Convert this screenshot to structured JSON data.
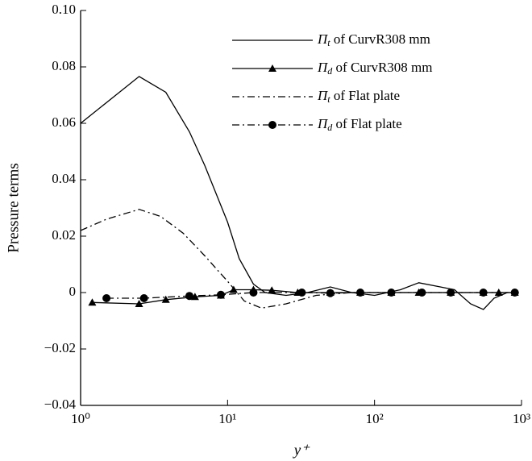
{
  "chart_data": {
    "type": "line",
    "xlabel": "y⁺",
    "ylabel": "Pressure terms",
    "xscale": "log",
    "xlim": [
      1,
      1000
    ],
    "ylim": [
      -0.04,
      0.1
    ],
    "xticks": [
      {
        "value": 1,
        "label": "10⁰"
      },
      {
        "value": 10,
        "label": "10¹"
      },
      {
        "value": 100,
        "label": "10²"
      },
      {
        "value": 1000,
        "label": "10³"
      }
    ],
    "yticks": [
      {
        "value": -0.04,
        "label": "−0.04"
      },
      {
        "value": -0.02,
        "label": "−0.02"
      },
      0,
      0.02,
      0.04,
      0.06,
      0.08,
      {
        "value": 0.1,
        "label": "0.10"
      }
    ],
    "legend": "top-right",
    "series": [
      {
        "name": "Πt of CurvR308 mm",
        "color": "#000000",
        "dash": "solid",
        "marker": null,
        "x": [
          1,
          2.5,
          3.8,
          5.5,
          7,
          10,
          12,
          15,
          18,
          25,
          35,
          50,
          70,
          100,
          150,
          200,
          280,
          350,
          450,
          550,
          650,
          800
        ],
        "values": [
          0.06,
          0.0766,
          0.071,
          0.057,
          0.045,
          0.025,
          0.012,
          0.003,
          0.0,
          -0.001,
          0.0,
          0.002,
          0.0,
          -0.001,
          0.001,
          0.0035,
          0.002,
          0.001,
          -0.004,
          -0.006,
          -0.002,
          0.0
        ]
      },
      {
        "name": "Πd of CurvR308 mm",
        "color": "#000000",
        "dash": "solid",
        "marker": "triangle",
        "x": [
          1.2,
          2.5,
          3.8,
          6,
          9,
          11,
          15,
          20,
          30,
          50,
          80,
          130,
          200,
          330,
          550,
          700,
          900
        ],
        "values": [
          -0.0035,
          -0.004,
          -0.0025,
          -0.0015,
          -0.001,
          0.001,
          0.001,
          0.0008,
          0.0,
          0.0,
          0.0,
          0.0,
          0.0,
          0.0,
          0.0,
          0.0,
          0.0
        ]
      },
      {
        "name": "Πt of Flat plate",
        "color": "#000000",
        "dash": "dashdot",
        "marker": null,
        "x": [
          1,
          1.5,
          2.5,
          3.5,
          5,
          7,
          10,
          13,
          17,
          25,
          40,
          70,
          150,
          300,
          1000
        ],
        "values": [
          0.022,
          0.026,
          0.0295,
          0.027,
          0.021,
          0.013,
          0.004,
          -0.003,
          -0.0055,
          -0.004,
          -0.001,
          0.0,
          0.0,
          0.0,
          0.0
        ]
      },
      {
        "name": "Πd of Flat plate",
        "color": "#000000",
        "dash": "dashdot",
        "marker": "circle",
        "x": [
          1.5,
          2.7,
          5.5,
          9,
          15,
          32,
          50,
          80,
          130,
          210,
          330,
          550,
          900
        ],
        "values": [
          -0.002,
          -0.002,
          -0.0012,
          -0.0008,
          0.0,
          0.0,
          -0.0002,
          0.0,
          0.0,
          0.0,
          0.0,
          0.0,
          0.0
        ]
      }
    ]
  }
}
